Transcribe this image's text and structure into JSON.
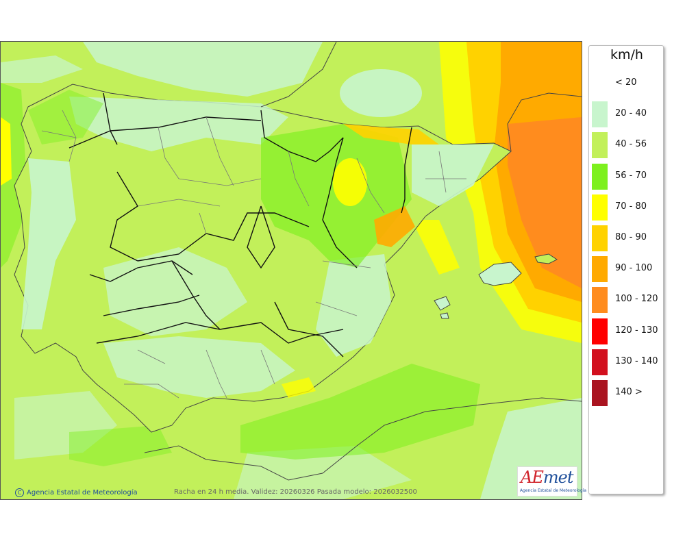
{
  "legend": {
    "unit": "km/h",
    "items": [
      {
        "label": "< 20",
        "color": null
      },
      {
        "label": "20 - 40",
        "color": "#c8f5cd"
      },
      {
        "label": "40 - 56",
        "color": "#c2f05a"
      },
      {
        "label": "56 - 70",
        "color": "#7df01e"
      },
      {
        "label": "70 - 80",
        "color": "#ffff00"
      },
      {
        "label": "80 - 90",
        "color": "#ffd200"
      },
      {
        "label": "90 - 100",
        "color": "#ffaa00"
      },
      {
        "label": "100 - 120",
        "color": "#ff8c1e"
      },
      {
        "label": "120 - 130",
        "color": "#ff0000"
      },
      {
        "label": "130 - 140",
        "color": "#d2101e"
      },
      {
        "label": "140 >",
        "color": "#aa1420"
      }
    ]
  },
  "credits": {
    "copyright_symbol": "C",
    "agency": "Agencia Estatal de Meteorología",
    "product": "Racha en 24 h media. Validez: 20260326 Pasada modelo: 2026032500"
  },
  "logo": {
    "mark_a": "AE",
    "mark_rest": "met",
    "subtitle": "Agencia Estatal de Meteorología"
  },
  "map": {
    "colors": {
      "sea_background": "#c2f05a",
      "land_low": "#c8f5cd",
      "band_56_70": "#7df01e",
      "band_70_80": "#ffff00",
      "band_80_90": "#ffd200",
      "band_90_100": "#ffaa00",
      "band_100_120": "#ff8c1e",
      "coast": "#444444",
      "region_border": "#111111",
      "province_border": "#777777"
    }
  }
}
